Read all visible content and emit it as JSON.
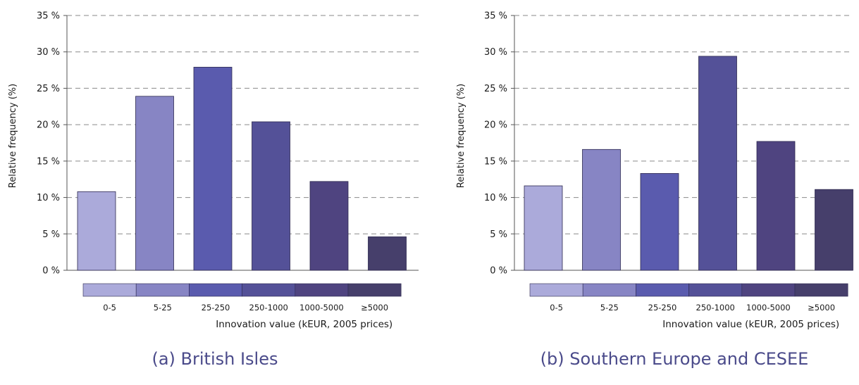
{
  "chart_data": [
    {
      "type": "bar",
      "caption": "(a) British Isles",
      "ylabel": "Relative frequency (%)",
      "xlabel": "Innovation value (kEUR, 2005 prices)",
      "categories": [
        "0-5",
        "5-25",
        "25-250",
        "250-1000",
        "1000-5000",
        "≥5000"
      ],
      "values": [
        10.8,
        23.9,
        27.9,
        20.4,
        12.2,
        4.6
      ],
      "ylim": [
        0,
        35
      ],
      "yticks": [
        0,
        5,
        10,
        15,
        20,
        25,
        30,
        35
      ],
      "ytick_labels": [
        "0 %",
        "5 %",
        "10 %",
        "15 %",
        "20 %",
        "25 %",
        "30 %",
        "35 %"
      ],
      "grid": true,
      "colors": [
        "#abaada",
        "#8785c4",
        "#5a5bae",
        "#545198",
        "#4f4480",
        "#463f6b"
      ]
    },
    {
      "type": "bar",
      "caption": "(b) Southern Europe and CESEE",
      "ylabel": "Relative frequency (%)",
      "xlabel": "Innovation value (kEUR, 2005 prices)",
      "categories": [
        "0-5",
        "5-25",
        "25-250",
        "250-1000",
        "1000-5000",
        "≥5000"
      ],
      "values": [
        11.6,
        16.6,
        13.3,
        29.4,
        17.7,
        11.1
      ],
      "ylim": [
        0,
        35
      ],
      "yticks": [
        0,
        5,
        10,
        15,
        20,
        25,
        30,
        35
      ],
      "ytick_labels": [
        "0 %",
        "5 %",
        "10 %",
        "15 %",
        "20 %",
        "25 %",
        "30 %",
        "35 %"
      ],
      "grid": true,
      "colors": [
        "#abaada",
        "#8785c4",
        "#5a5bae",
        "#545198",
        "#4f4480",
        "#463f6b"
      ]
    }
  ]
}
